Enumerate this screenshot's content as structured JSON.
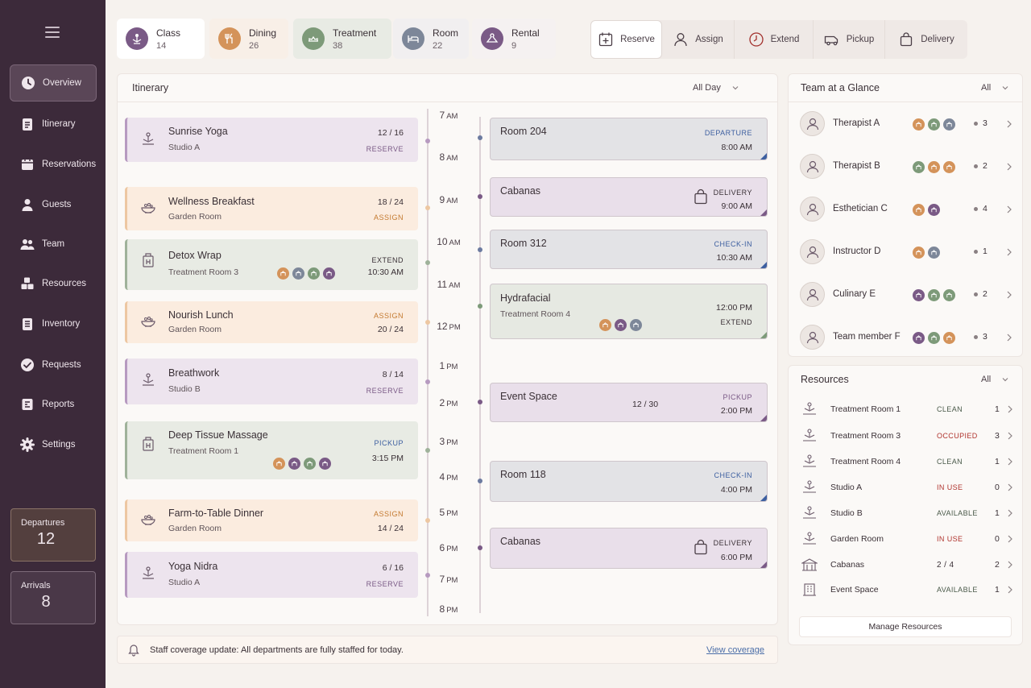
{
  "sidebar": {
    "nav": [
      {
        "label": "Overview",
        "icon": "clock-icon"
      },
      {
        "label": "Itinerary",
        "icon": "clipboard-icon"
      },
      {
        "label": "Reservations",
        "icon": "calendar-icon"
      },
      {
        "label": "Guests",
        "icon": "person-icon"
      },
      {
        "label": "Team",
        "icon": "people-icon"
      },
      {
        "label": "Resources",
        "icon": "cubes-icon"
      },
      {
        "label": "Inventory",
        "icon": "list-icon"
      },
      {
        "label": "Requests",
        "icon": "check-circle-icon"
      },
      {
        "label": "Reports",
        "icon": "report-icon"
      },
      {
        "label": "Settings",
        "icon": "gear-icon"
      }
    ],
    "departures": {
      "label": "Departures",
      "value": "12"
    },
    "arrivals": {
      "label": "Arrivals",
      "value": "8"
    }
  },
  "tabs": [
    {
      "label": "Class",
      "count": "14",
      "color": "#7a5a86"
    },
    {
      "label": "Dining",
      "count": "26",
      "color": "#d4935a"
    },
    {
      "label": "Treatment",
      "count": "38",
      "color": "#7d9a79"
    },
    {
      "label": "Room",
      "count": "22",
      "color": "#7d8799"
    },
    {
      "label": "Rental",
      "count": "9",
      "color": "#7a5a86"
    }
  ],
  "actions": [
    "Reserve",
    "Assign",
    "Extend",
    "Pickup",
    "Delivery"
  ],
  "itinerary": {
    "title": "Itinerary",
    "filter": "All Day",
    "cards": [
      {
        "name": "Sunrise Yoga",
        "sub": "Studio A",
        "ratio": "12 / 16",
        "tag": "RESERVE"
      },
      {
        "name": "Wellness Breakfast",
        "sub": "Garden Room",
        "ratio": "18 / 24",
        "tag": "ASSIGN"
      },
      {
        "name": "Detox Wrap",
        "sub": "Treatment Room 3",
        "tag": "EXTEND",
        "time": "10:30 AM"
      },
      {
        "name": "Nourish Lunch",
        "sub": "Garden Room",
        "tag": "ASSIGN",
        "ratio": "20 / 24"
      },
      {
        "name": "Breathwork",
        "sub": "Studio B",
        "ratio": "8 / 14",
        "tag": "RESERVE"
      },
      {
        "name": "Deep Tissue Massage",
        "sub": "Treatment Room 1",
        "tag": "PICKUP",
        "time": "3:15 PM"
      },
      {
        "name": "Farm-to-Table Dinner",
        "sub": "Garden Room",
        "tag": "ASSIGN",
        "ratio": "14 / 24"
      },
      {
        "name": "Yoga Nidra",
        "sub": "Studio A",
        "ratio": "6 / 16",
        "tag": "RESERVE"
      }
    ],
    "hours": [
      {
        "h": "7",
        "m": "AM"
      },
      {
        "h": "8",
        "m": "AM"
      },
      {
        "h": "9",
        "m": "AM"
      },
      {
        "h": "10",
        "m": "AM"
      },
      {
        "h": "11",
        "m": "AM"
      },
      {
        "h": "12",
        "m": "PM"
      },
      {
        "h": "1",
        "m": "PM"
      },
      {
        "h": "2",
        "m": "PM"
      },
      {
        "h": "3",
        "m": "PM"
      },
      {
        "h": "4",
        "m": "PM"
      },
      {
        "h": "5",
        "m": "PM"
      },
      {
        "h": "6",
        "m": "PM"
      },
      {
        "h": "7",
        "m": "PM"
      },
      {
        "h": "8",
        "m": "PM"
      }
    ],
    "events": [
      {
        "name": "Room 204",
        "tag": "DEPARTURE",
        "time": "8:00 AM"
      },
      {
        "name": "Cabanas",
        "tag": "DELIVERY",
        "time": "9:00 AM"
      },
      {
        "name": "Room 312",
        "tag": "CHECK-IN",
        "time": "10:30 AM"
      },
      {
        "name": "Hydrafacial",
        "sub": "Treatment Room 4",
        "time": "12:00 PM",
        "tag": "EXTEND"
      },
      {
        "name": "Event Space",
        "ratio": "12 / 30",
        "tag": "PICKUP",
        "time": "2:00 PM"
      },
      {
        "name": "Room 118",
        "tag": "CHECK-IN",
        "time": "4:00 PM"
      },
      {
        "name": "Cabanas",
        "tag": "DELIVERY",
        "time": "6:00 PM"
      }
    ]
  },
  "team": {
    "title": "Team at a Glance",
    "filter": "All",
    "members": [
      {
        "name": "Therapist A",
        "count": "3"
      },
      {
        "name": "Therapist B",
        "count": "2"
      },
      {
        "name": "Esthetician C",
        "count": "4"
      },
      {
        "name": "Instructor D",
        "count": "1"
      },
      {
        "name": "Culinary E",
        "count": "2"
      },
      {
        "name": "Team member F",
        "count": "3"
      }
    ]
  },
  "resources": {
    "title": "Resources",
    "filter": "All",
    "items": [
      {
        "name": "Treatment Room 1",
        "status": "CLEAN",
        "count": "1",
        "status_color": "#4a5a4a"
      },
      {
        "name": "Treatment Room 3",
        "status": "OCCUPIED",
        "count": "3",
        "status_color": "#b0342e"
      },
      {
        "name": "Treatment Room 4",
        "status": "CLEAN",
        "count": "1",
        "status_color": "#4a5a4a"
      },
      {
        "name": "Studio A",
        "status": "IN USE",
        "count": "0",
        "status_color": "#b0342e"
      },
      {
        "name": "Studio B",
        "status": "AVAILABLE",
        "count": "1",
        "status_color": "#4a5a4a"
      },
      {
        "name": "Garden Room",
        "status": "IN USE",
        "count": "0",
        "status_color": "#b0342e"
      },
      {
        "name": "Cabanas",
        "status": "2 / 4",
        "count": "2",
        "status_color": "#3a3036"
      },
      {
        "name": "Event Space",
        "status": "AVAILABLE",
        "count": "1",
        "status_color": "#4a5a4a"
      }
    ],
    "manage_label": "Manage Resources"
  },
  "notice": {
    "message": "Staff coverage update: All departments are fully staffed for today.",
    "link": "View coverage"
  },
  "colors": {
    "purple": "#7a5a86",
    "peach": "#d4935a",
    "green": "#7d9a79",
    "slate": "#7d8799",
    "sidebar": "#3c2a3a"
  }
}
